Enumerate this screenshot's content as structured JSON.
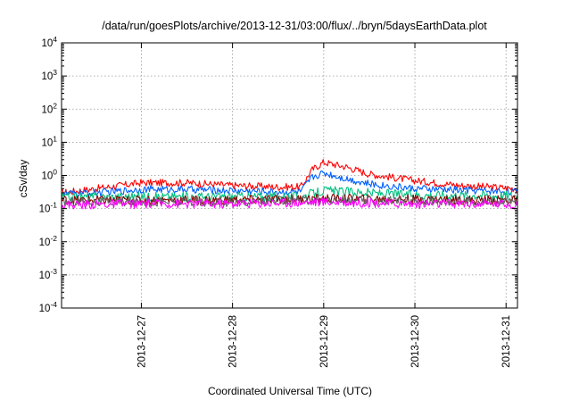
{
  "chart_data": {
    "type": "line",
    "title": "/data/run/goesPlots/archive/2013-12-31/03:00/flux/../bryn/5daysEarthData.plot",
    "xlabel": "Coordinated Universal Time (UTC)",
    "ylabel": "cSv/day",
    "yscale": "log",
    "ylim": [
      0.0001,
      10000
    ],
    "xlim": [
      "2013-12-26T03:00",
      "2013-12-31T03:00"
    ],
    "grid": true,
    "legend": "none",
    "y_ticks": [
      {
        "base": "10",
        "exp": "-4",
        "value": 0.0001
      },
      {
        "base": "10",
        "exp": "-3",
        "value": 0.001
      },
      {
        "base": "10",
        "exp": "-2",
        "value": 0.01
      },
      {
        "base": "10",
        "exp": "-1",
        "value": 0.1
      },
      {
        "base": "10",
        "exp": "0",
        "value": 1
      },
      {
        "base": "10",
        "exp": "1",
        "value": 10
      },
      {
        "base": "10",
        "exp": "2",
        "value": 100
      },
      {
        "base": "10",
        "exp": "3",
        "value": 1000
      },
      {
        "base": "10",
        "exp": "4",
        "value": 10000
      }
    ],
    "x_ticks": [
      {
        "label": "2013-12-27",
        "value": "2013-12-27T00:00"
      },
      {
        "label": "2013-12-28",
        "value": "2013-12-28T00:00"
      },
      {
        "label": "2013-12-29",
        "value": "2013-12-29T00:00"
      },
      {
        "label": "2013-12-30",
        "value": "2013-12-30T00:00"
      },
      {
        "label": "2013-12-31",
        "value": "2013-12-31T00:00"
      }
    ],
    "series": [
      {
        "color": "#ff0000",
        "x": [
          "2013-12-26T03:00",
          "2013-12-26T12:00",
          "2013-12-27T00:00",
          "2013-12-27T12:00",
          "2013-12-28T00:00",
          "2013-12-28T12:00",
          "2013-12-28T18:00",
          "2013-12-28T21:00",
          "2013-12-29T00:00",
          "2013-12-29T06:00",
          "2013-12-29T12:00",
          "2013-12-30T00:00",
          "2013-12-30T12:00",
          "2013-12-31T00:00",
          "2013-12-31T03:00"
        ],
        "y": [
          0.3,
          0.4,
          0.6,
          0.6,
          0.5,
          0.45,
          0.45,
          1.5,
          2.5,
          1.8,
          1.1,
          0.7,
          0.5,
          0.42,
          0.4
        ]
      },
      {
        "color": "#0060ff",
        "x": [
          "2013-12-26T03:00",
          "2013-12-26T12:00",
          "2013-12-27T00:00",
          "2013-12-27T12:00",
          "2013-12-28T00:00",
          "2013-12-28T12:00",
          "2013-12-28T18:00",
          "2013-12-28T21:00",
          "2013-12-29T00:00",
          "2013-12-29T06:00",
          "2013-12-29T12:00",
          "2013-12-30T00:00",
          "2013-12-30T12:00",
          "2013-12-31T00:00",
          "2013-12-31T03:00"
        ],
        "y": [
          0.28,
          0.3,
          0.38,
          0.38,
          0.35,
          0.32,
          0.32,
          0.9,
          1.2,
          0.8,
          0.55,
          0.4,
          0.36,
          0.33,
          0.32
        ]
      },
      {
        "color": "#00c080",
        "x": [
          "2013-12-26T03:00",
          "2013-12-27T00:00",
          "2013-12-28T00:00",
          "2013-12-28T18:00",
          "2013-12-29T00:00",
          "2013-12-29T12:00",
          "2013-12-30T00:00",
          "2013-12-31T00:00",
          "2013-12-31T03:00"
        ],
        "y": [
          0.22,
          0.23,
          0.23,
          0.23,
          0.35,
          0.3,
          0.26,
          0.25,
          0.25
        ]
      },
      {
        "color": "#8b0000",
        "x": [
          "2013-12-26T03:00",
          "2013-12-27T00:00",
          "2013-12-28T00:00",
          "2013-12-29T00:00",
          "2013-12-30T00:00",
          "2013-12-31T00:00",
          "2013-12-31T03:00"
        ],
        "y": [
          0.18,
          0.18,
          0.18,
          0.2,
          0.19,
          0.18,
          0.18
        ]
      },
      {
        "color": "#606060",
        "x": [
          "2013-12-26T03:00",
          "2013-12-27T00:00",
          "2013-12-28T00:00",
          "2013-12-29T00:00",
          "2013-12-30T00:00",
          "2013-12-31T00:00",
          "2013-12-31T03:00"
        ],
        "y": [
          0.16,
          0.16,
          0.16,
          0.18,
          0.17,
          0.16,
          0.16
        ]
      },
      {
        "color": "#ff00ff",
        "x": [
          "2013-12-26T03:00",
          "2013-12-27T00:00",
          "2013-12-28T00:00",
          "2013-12-29T00:00",
          "2013-12-30T00:00",
          "2013-12-31T00:00",
          "2013-12-31T03:00"
        ],
        "y": [
          0.13,
          0.14,
          0.14,
          0.16,
          0.14,
          0.14,
          0.13
        ]
      }
    ]
  }
}
